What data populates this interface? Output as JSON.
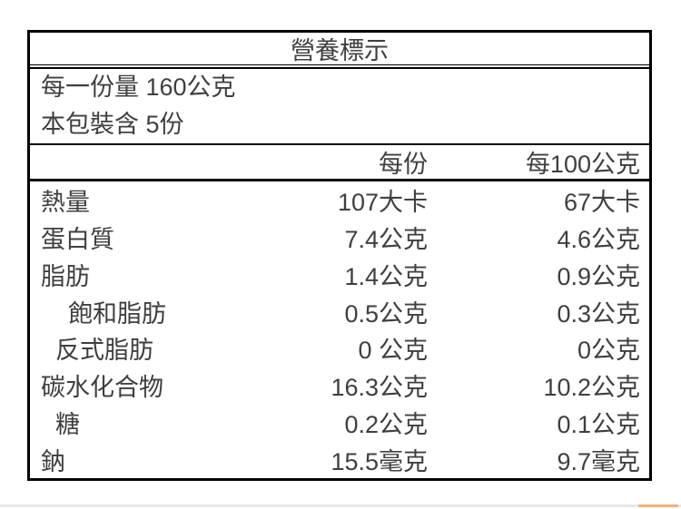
{
  "label": {
    "title": "營養標示",
    "serving_lines": [
      "每一份量 160公克",
      "本包裝含 5份"
    ],
    "columns": {
      "name_header": "",
      "per_serving": "每份",
      "per_100g": "每100公克"
    },
    "rows": [
      {
        "name": "熱量",
        "indent": 0,
        "per_serving": "107大卡",
        "per_100g": "67大卡"
      },
      {
        "name": "蛋白質",
        "indent": 0,
        "per_serving": "7.4公克",
        "per_100g": "4.6公克"
      },
      {
        "name": "脂肪",
        "indent": 0,
        "per_serving": "1.4公克",
        "per_100g": "0.9公克"
      },
      {
        "name": "飽和脂肪",
        "indent": 2,
        "per_serving": "0.5公克",
        "per_100g": "0.3公克"
      },
      {
        "name": "反式脂肪",
        "indent": 1,
        "per_serving": "0 公克",
        "per_100g": "0公克"
      },
      {
        "name": "碳水化合物",
        "indent": 0,
        "per_serving": "16.3公克",
        "per_100g": "10.2公克"
      },
      {
        "name": "糖",
        "indent": 1,
        "per_serving": "0.2公克",
        "per_100g": "0.1公克"
      },
      {
        "name": "鈉",
        "indent": 0,
        "per_serving": "15.5毫克",
        "per_100g": "9.7毫克"
      }
    ]
  },
  "colors": {
    "border": "#000000",
    "text": "#3f3f3f",
    "bottom_strip": "#e7e7e7",
    "bottom_strip_accent": "#f6b26f"
  }
}
